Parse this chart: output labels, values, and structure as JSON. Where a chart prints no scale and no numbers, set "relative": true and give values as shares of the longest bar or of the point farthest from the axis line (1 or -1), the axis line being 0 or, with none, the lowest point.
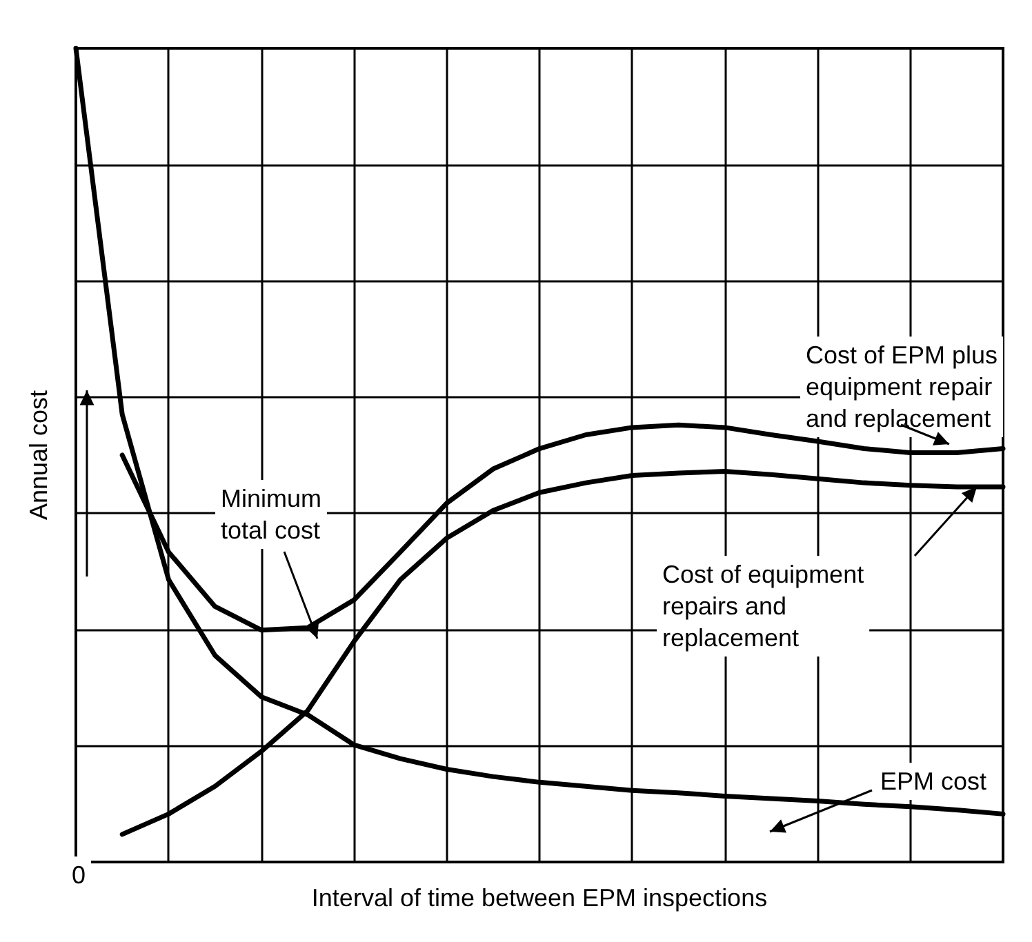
{
  "chart_data": {
    "type": "line",
    "relative": true,
    "xlabel": "Interval of time between EPM inspections",
    "ylabel": "Annual cost",
    "grid": true,
    "marker": "none",
    "line_style": "solid",
    "categories": [
      null,
      null,
      null,
      null,
      null,
      null,
      null,
      null,
      null,
      null,
      null,
      null,
      null,
      null,
      null,
      null,
      null,
      null,
      null,
      null,
      null
    ],
    "series": [
      {
        "color": "#000000",
        "values": [
          1.0,
          0.55,
          0.347,
          0.254,
          0.203,
          0.181,
          0.144,
          0.127,
          0.114,
          0.105,
          0.098,
          0.093,
          0.088,
          0.085,
          0.081,
          0.078,
          0.075,
          0.071,
          0.068,
          0.064,
          0.059
        ]
      },
      {
        "color": "#000000",
        "values": [
          null,
          0.034,
          0.059,
          0.093,
          0.136,
          0.186,
          0.271,
          0.347,
          0.398,
          0.432,
          0.454,
          0.466,
          0.475,
          0.478,
          0.48,
          0.476,
          0.471,
          0.466,
          0.463,
          0.461,
          0.461
        ]
      },
      {
        "color": "#000000",
        "values": [
          null,
          0.5,
          0.381,
          0.314,
          0.285,
          0.288,
          0.322,
          0.381,
          0.441,
          0.483,
          0.508,
          0.525,
          0.534,
          0.537,
          0.534,
          0.525,
          0.517,
          0.508,
          0.503,
          0.503,
          0.508
        ]
      }
    ],
    "annotations": [
      "Minimum\ntotal cost",
      "Cost of EPM plus\nequipment repair\nand replacement",
      "Cost of equipment\nrepairs and\nreplacement",
      "EPM cost",
      "0"
    ]
  }
}
